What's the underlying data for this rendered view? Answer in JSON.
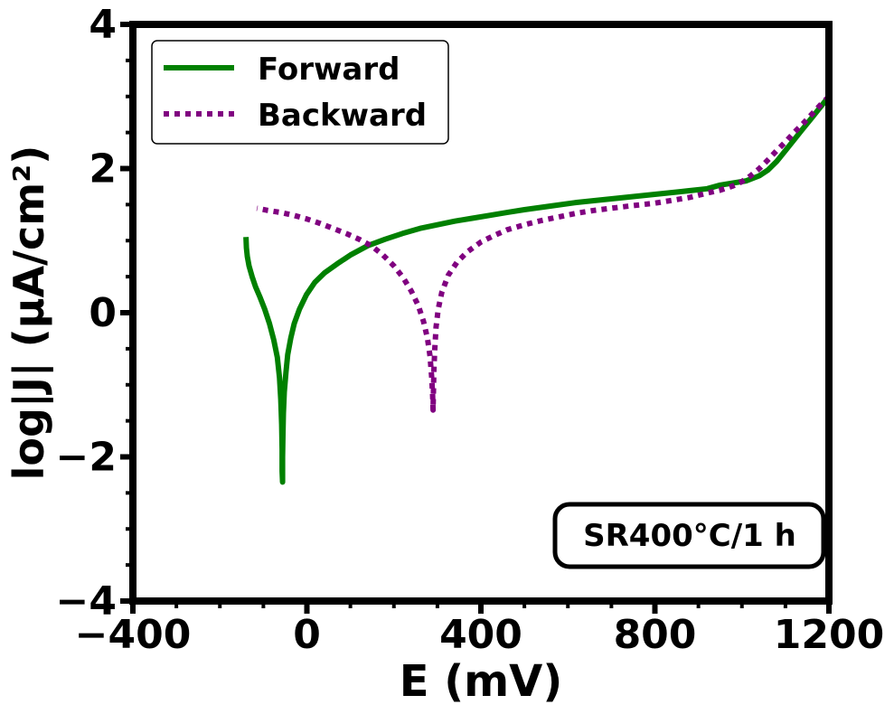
{
  "chart_data": {
    "type": "line",
    "title": "",
    "xlabel": "E (mV)",
    "ylabel": "log|J| (μA/cm²)",
    "xlim": [
      -400,
      1200
    ],
    "ylim": [
      -4,
      4
    ],
    "xticks": [
      -400,
      0,
      400,
      800,
      1200
    ],
    "xtick_labels": [
      "−400",
      "0",
      "400",
      "800",
      "1200"
    ],
    "yticks": [
      -4,
      -2,
      0,
      2,
      4
    ],
    "ytick_labels": [
      "−4",
      "−2",
      "0",
      "2",
      "4"
    ],
    "grid": false,
    "legend_position": "top-left",
    "annotation": "SR400°C/1 h",
    "series": [
      {
        "name": "Forward",
        "color": "#008000",
        "style": "solid",
        "x": [
          -140,
          -139,
          -137,
          -133,
          -126,
          -118,
          -108,
          -97,
          -86,
          -76,
          -68,
          -63,
          -60,
          -58,
          -57,
          -57,
          -56,
          -56,
          -56,
          -55,
          -54,
          -52,
          -48,
          -44,
          -37,
          -29,
          -17,
          -1,
          18,
          40,
          70,
          100,
          140,
          180,
          220,
          260,
          300,
          340,
          380,
          420,
          460,
          500,
          560,
          620,
          700,
          780,
          860,
          920,
          950,
          980,
          1010,
          1040,
          1060,
          1080,
          1100,
          1120,
          1140,
          1160,
          1180,
          1200
        ],
        "y": [
          1.05,
          0.9,
          0.78,
          0.65,
          0.5,
          0.36,
          0.22,
          0.05,
          -0.15,
          -0.38,
          -0.62,
          -0.9,
          -1.2,
          -1.55,
          -1.9,
          -2.2,
          -2.35,
          -2.25,
          -2.0,
          -1.7,
          -1.4,
          -1.1,
          -0.82,
          -0.58,
          -0.35,
          -0.15,
          0.05,
          0.25,
          0.42,
          0.55,
          0.68,
          0.8,
          0.93,
          1.02,
          1.1,
          1.17,
          1.22,
          1.27,
          1.31,
          1.35,
          1.39,
          1.43,
          1.48,
          1.53,
          1.58,
          1.63,
          1.68,
          1.72,
          1.77,
          1.8,
          1.83,
          1.9,
          1.98,
          2.1,
          2.25,
          2.4,
          2.55,
          2.7,
          2.85,
          3.0
        ]
      },
      {
        "name": "Backward",
        "color": "#800080",
        "style": "dotted",
        "x": [
          1200,
          1180,
          1160,
          1140,
          1120,
          1100,
          1080,
          1060,
          1040,
          1020,
          1000,
          980,
          950,
          920,
          880,
          840,
          800,
          770,
          740,
          700,
          660,
          620,
          580,
          540,
          500,
          460,
          430,
          400,
          370,
          345,
          325,
          310,
          302,
          297,
          294,
          292,
          291,
          290,
          289,
          287,
          283,
          277,
          268,
          256,
          240,
          222,
          200,
          175,
          150,
          120,
          90,
          60,
          30,
          0,
          -30,
          -60,
          -90,
          -115
        ],
        "y": [
          3.0,
          2.88,
          2.75,
          2.62,
          2.5,
          2.37,
          2.25,
          2.12,
          2.0,
          1.9,
          1.82,
          1.76,
          1.7,
          1.66,
          1.6,
          1.56,
          1.52,
          1.5,
          1.48,
          1.45,
          1.42,
          1.38,
          1.33,
          1.28,
          1.22,
          1.15,
          1.07,
          0.98,
          0.85,
          0.7,
          0.52,
          0.28,
          0.05,
          -0.2,
          -0.5,
          -0.8,
          -1.1,
          -1.35,
          -1.15,
          -0.9,
          -0.6,
          -0.35,
          -0.12,
          0.1,
          0.3,
          0.48,
          0.65,
          0.8,
          0.92,
          1.02,
          1.1,
          1.17,
          1.24,
          1.3,
          1.35,
          1.39,
          1.42,
          1.45
        ]
      }
    ]
  }
}
